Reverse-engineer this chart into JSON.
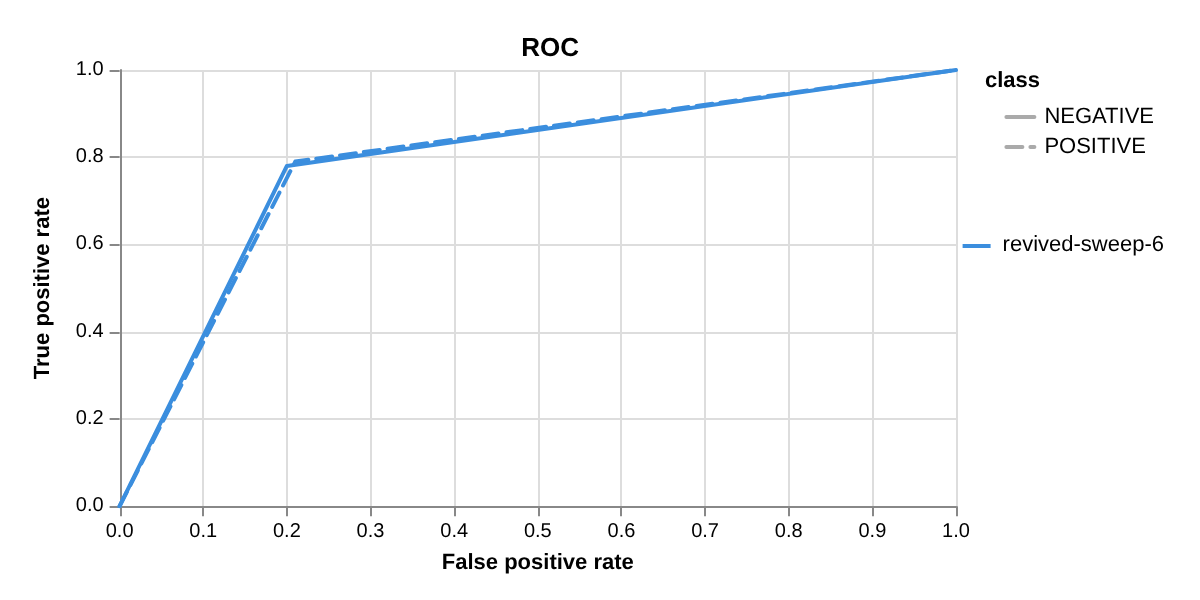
{
  "chart_data": {
    "type": "line",
    "title": "ROC",
    "xlabel": "False positive rate",
    "ylabel": "True positive rate",
    "legend_title": "class",
    "series": [
      {
        "name": "NEGATIVE",
        "color": "#3b8ede",
        "line_style": "solid",
        "x": [
          0,
          0.2,
          1
        ],
        "values": [
          0,
          0.78,
          1
        ]
      },
      {
        "name": "POSITIVE",
        "color": "#3b8ede",
        "line_style": "dashed",
        "x": [
          0,
          0.21,
          1
        ],
        "values": [
          0,
          0.79,
          1
        ]
      }
    ],
    "annotations": [
      "revived-sweep-6"
    ],
    "xlim": [
      0,
      1
    ],
    "ylim": [
      0,
      1
    ],
    "xticks": [
      {
        "value": 0,
        "label": "0.0"
      },
      0.1,
      0.2,
      0.3,
      0.4,
      0.5,
      0.6,
      0.7,
      0.8,
      0.9,
      {
        "value": 1,
        "label": "1.0"
      }
    ],
    "yticks": [
      {
        "value": 0,
        "label": "0.0"
      },
      0.2,
      0.4,
      0.6,
      0.8,
      {
        "value": 1,
        "label": "1.0"
      }
    ],
    "grid": true,
    "legend": "right",
    "marker": "none"
  }
}
